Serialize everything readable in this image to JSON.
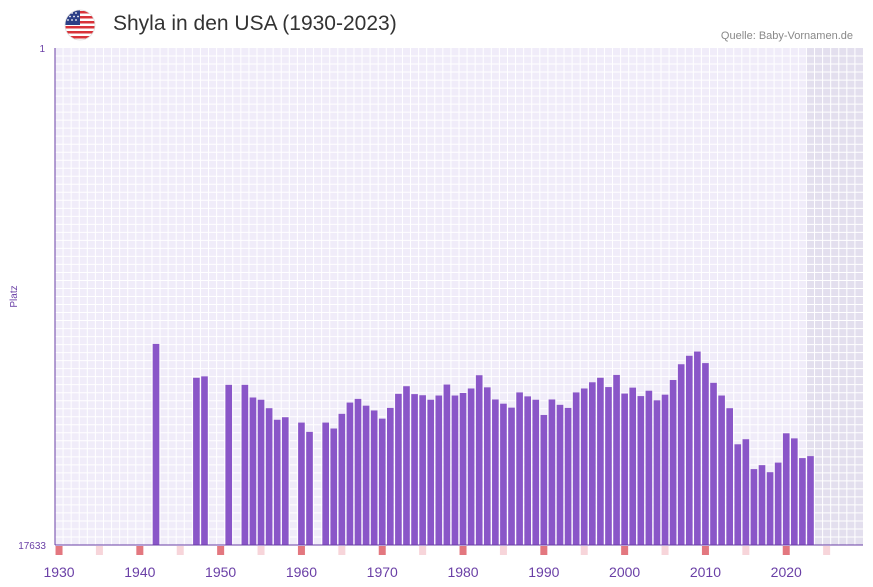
{
  "header": {
    "title": "Shyla in den USA (1930-2023)",
    "source": "Quelle: Baby-Vornamen.de",
    "flag_icon": "usa-flag-icon"
  },
  "chart_data": {
    "type": "bar",
    "title": "Shyla in den USA (1930-2023)",
    "ylabel": "Platz",
    "xlabel": "",
    "y_axis_inverted": true,
    "ylim": [
      1,
      17633
    ],
    "y_tick_labels": [
      "1",
      "17633"
    ],
    "x_tick_labels": [
      "1930",
      "1940",
      "1950",
      "1960",
      "1970",
      "1980",
      "1990",
      "2000",
      "2010",
      "2020"
    ],
    "xlim": [
      1929.5,
      2029.5
    ],
    "shaded_future_from": 2022.5,
    "colors": {
      "bar": "#8a56c8",
      "grid_bg": "#f0ecf9",
      "shade": "#e3dfee",
      "axis": "#6a3fa6",
      "marker_strong": "#e3777f",
      "marker_light": "#f7d5da"
    },
    "series": [
      {
        "name": "Platz",
        "points": [
          [
            1942,
            10500
          ],
          [
            1947,
            11700
          ],
          [
            1948,
            11650
          ],
          [
            1951,
            11950
          ],
          [
            1953,
            11950
          ],
          [
            1954,
            12400
          ],
          [
            1955,
            12480
          ],
          [
            1956,
            12780
          ],
          [
            1957,
            13190
          ],
          [
            1958,
            13100
          ],
          [
            1960,
            13290
          ],
          [
            1961,
            13620
          ],
          [
            1963,
            13290
          ],
          [
            1964,
            13500
          ],
          [
            1965,
            12980
          ],
          [
            1966,
            12580
          ],
          [
            1967,
            12450
          ],
          [
            1968,
            12690
          ],
          [
            1969,
            12860
          ],
          [
            1970,
            13150
          ],
          [
            1971,
            12770
          ],
          [
            1972,
            12270
          ],
          [
            1973,
            12000
          ],
          [
            1974,
            12280
          ],
          [
            1975,
            12320
          ],
          [
            1976,
            12480
          ],
          [
            1977,
            12330
          ],
          [
            1978,
            11940
          ],
          [
            1979,
            12330
          ],
          [
            1980,
            12240
          ],
          [
            1981,
            12080
          ],
          [
            1982,
            11610
          ],
          [
            1983,
            12040
          ],
          [
            1984,
            12470
          ],
          [
            1985,
            12620
          ],
          [
            1986,
            12760
          ],
          [
            1987,
            12220
          ],
          [
            1988,
            12360
          ],
          [
            1989,
            12480
          ],
          [
            1990,
            13020
          ],
          [
            1991,
            12470
          ],
          [
            1992,
            12660
          ],
          [
            1993,
            12770
          ],
          [
            1994,
            12220
          ],
          [
            1995,
            12080
          ],
          [
            1996,
            11860
          ],
          [
            1997,
            11700
          ],
          [
            1998,
            12030
          ],
          [
            1999,
            11600
          ],
          [
            2000,
            12260
          ],
          [
            2001,
            12050
          ],
          [
            2002,
            12350
          ],
          [
            2003,
            12160
          ],
          [
            2004,
            12500
          ],
          [
            2005,
            12300
          ],
          [
            2006,
            11780
          ],
          [
            2007,
            11220
          ],
          [
            2008,
            10920
          ],
          [
            2009,
            10770
          ],
          [
            2010,
            11180
          ],
          [
            2011,
            11880
          ],
          [
            2012,
            12330
          ],
          [
            2013,
            12780
          ],
          [
            2014,
            14060
          ],
          [
            2015,
            13880
          ],
          [
            2016,
            14940
          ],
          [
            2017,
            14800
          ],
          [
            2018,
            15050
          ],
          [
            2019,
            14710
          ],
          [
            2020,
            13670
          ],
          [
            2021,
            13850
          ],
          [
            2022,
            14550
          ],
          [
            2023,
            14480
          ]
        ]
      }
    ],
    "x_markers": {
      "strong": [
        1930,
        1940,
        1950,
        1960,
        1970,
        1980,
        1990,
        2000,
        2010,
        2020,
        2030
      ],
      "light": [
        1935,
        1945,
        1955,
        1965,
        1975,
        1985,
        1995,
        2005,
        2015,
        2025
      ]
    }
  }
}
